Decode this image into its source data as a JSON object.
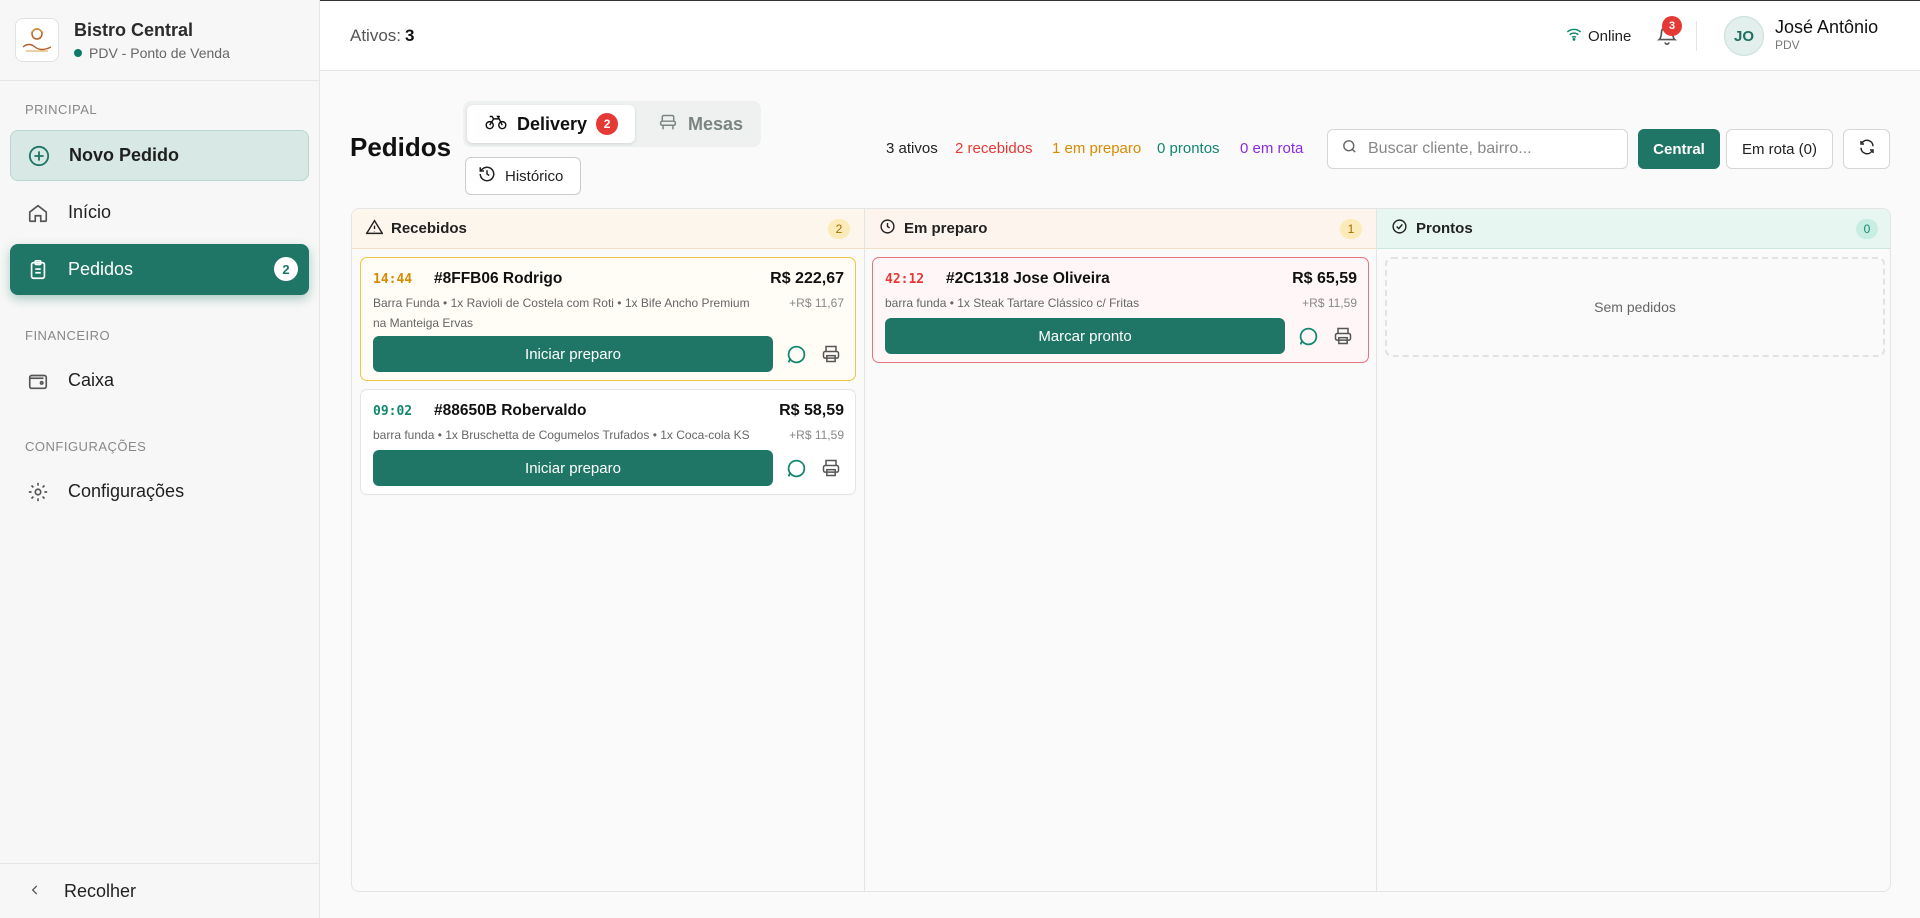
{
  "sidebar": {
    "brand_name": "Bistro Central",
    "brand_sub": "PDV - Ponto de Venda",
    "section_principal": "PRINCIPAL",
    "section_financeiro": "FINANCEIRO",
    "section_config": "CONFIGURAÇÕES",
    "new_order": "Novo Pedido",
    "home": "Início",
    "orders": "Pedidos",
    "orders_badge": "2",
    "cash": "Caixa",
    "settings": "Configurações",
    "collapse": "Recolher"
  },
  "header": {
    "active_label": "Ativos:",
    "active_count": "3",
    "status": "Online",
    "notifications": "3",
    "avatar_initials": "JO",
    "user_name": "José Antônio",
    "user_role": "PDV"
  },
  "main": {
    "title": "Pedidos",
    "tab_delivery": "Delivery",
    "tab_delivery_badge": "2",
    "tab_tables": "Mesas",
    "history": "Histórico",
    "stats": {
      "active": "3 ativos",
      "received": "2 recebidos",
      "preparing": "1 em preparo",
      "ready": "0 prontos",
      "route": "0 em rota"
    },
    "search_placeholder": "Buscar cliente, bairro...",
    "btn_central": "Central",
    "btn_route": "Em rota (0)"
  },
  "columns": {
    "received": {
      "title": "Recebidos",
      "count": "2"
    },
    "preparing": {
      "title": "Em preparo",
      "count": "1"
    },
    "ready": {
      "title": "Prontos",
      "count": "0",
      "empty": "Sem pedidos"
    }
  },
  "orders": [
    {
      "time": "14:44",
      "id": "#8FFB06 Rodrigo",
      "total": "R$ 222,67",
      "items_line1": "Barra Funda • 1x Ravioli de Costela com Roti • 1x Bife Ancho Premium",
      "items_line2": "na Manteiga Ervas",
      "fee": "+R$ 11,67",
      "action": "Iniciar preparo"
    },
    {
      "time": "09:02",
      "id": "#88650B Robervaldo",
      "total": "R$ 58,59",
      "items_line1": "barra funda • 1x Bruschetta de Cogumelos Trufados • 1x Coca-cola KS",
      "fee": "+R$ 11,59",
      "action": "Iniciar preparo"
    },
    {
      "time": "42:12",
      "id": "#2C1318 Jose Oliveira",
      "total": "R$ 65,59",
      "items_line1": "barra funda • 1x Steak Tartare Clássico c/ Fritas",
      "fee": "+R$ 11,59",
      "action": "Marcar pronto"
    }
  ],
  "colors": {
    "primary": "#1f7666",
    "received": "#e53935",
    "preparing": "#d88a00",
    "ready": "#12876e",
    "route": "#8a2be2",
    "time_warn": "#d88a00",
    "time_ok": "#12876e",
    "time_late": "#e53935"
  }
}
